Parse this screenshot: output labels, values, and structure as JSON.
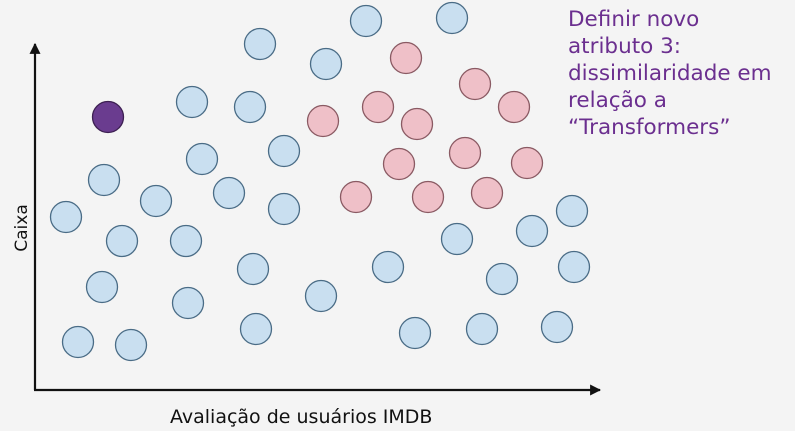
{
  "callout": {
    "lines": [
      "Definir novo",
      "atributo 3:",
      "dissimilaridade em",
      "relação a",
      "“Transformers”"
    ],
    "color": "#6b2f8f"
  },
  "axes": {
    "xlabel": "Avaliação de usuários IMDB",
    "ylabel": "Caixa"
  },
  "colors": {
    "blue_fill": "#c9dff0",
    "blue_stroke": "#4a6c86",
    "red_fill": "#efc0c8",
    "red_stroke": "#8a5a63",
    "purple_fill": "#6a3c8f",
    "axis": "#111111"
  },
  "chart_data": {
    "type": "scatter",
    "xlabel": "Avaliação de usuários IMDB",
    "ylabel": "Caixa",
    "series": [
      {
        "kind": "blue",
        "points": [
          [
            366,
            21
          ],
          [
            452,
            18
          ],
          [
            260,
            44
          ],
          [
            326,
            64
          ],
          [
            192,
            102
          ],
          [
            250,
            107
          ],
          [
            104,
            180
          ],
          [
            202,
            159
          ],
          [
            284,
            151
          ],
          [
            156,
            201
          ],
          [
            229,
            193
          ],
          [
            284,
            209
          ],
          [
            66,
            217
          ],
          [
            122,
            241
          ],
          [
            186,
            241
          ],
          [
            253,
            269
          ],
          [
            388,
            267
          ],
          [
            457,
            239
          ],
          [
            532,
            231
          ],
          [
            572,
            211
          ],
          [
            102,
            287
          ],
          [
            188,
            303
          ],
          [
            321,
            296
          ],
          [
            502,
            279
          ],
          [
            574,
            267
          ],
          [
            78,
            342
          ],
          [
            131,
            345
          ],
          [
            256,
            329
          ],
          [
            415,
            333
          ],
          [
            482,
            329
          ],
          [
            557,
            327
          ]
        ]
      },
      {
        "kind": "red",
        "points": [
          [
            406,
            58
          ],
          [
            475,
            84
          ],
          [
            514,
            107
          ],
          [
            323,
            121
          ],
          [
            378,
            107
          ],
          [
            417,
            124
          ],
          [
            399,
            164
          ],
          [
            465,
            153
          ],
          [
            527,
            163
          ],
          [
            356,
            197
          ],
          [
            428,
            197
          ],
          [
            487,
            193
          ]
        ]
      },
      {
        "kind": "purple",
        "points": [
          [
            108,
            117
          ]
        ]
      }
    ]
  }
}
